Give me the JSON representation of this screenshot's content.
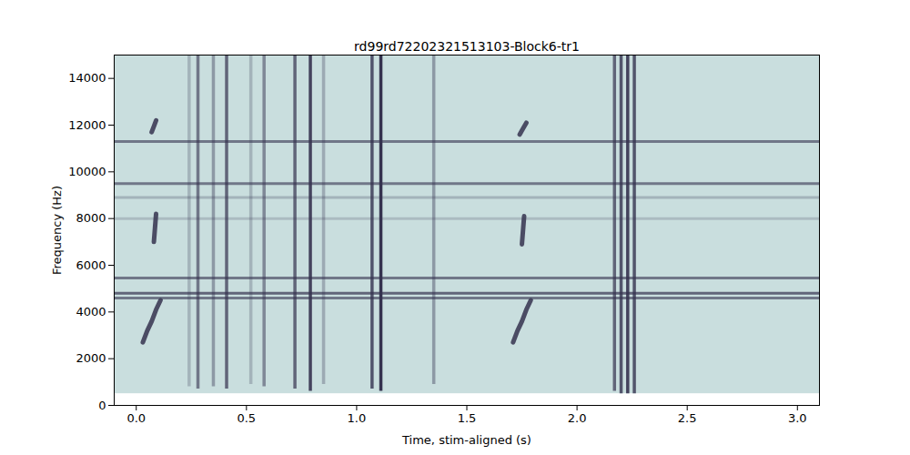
{
  "chart_data": {
    "type": "spectrogram",
    "title": "rd99rd72202321513103-Block6-tr1",
    "x_label": "Time, stim-aligned (s)",
    "y_label": "Frequency (Hz)",
    "xlim": [
      -0.1,
      3.1
    ],
    "ylim": [
      0,
      15000
    ],
    "xticks": [
      {
        "value": 0,
        "label": "0.0"
      },
      {
        "value": 0.5,
        "label": "0.5"
      },
      {
        "value": 1,
        "label": "1.0"
      },
      {
        "value": 1.5,
        "label": "1.5"
      },
      {
        "value": 2,
        "label": "2.0"
      },
      {
        "value": 2.5,
        "label": "2.5"
      },
      {
        "value": 3,
        "label": "3.0"
      }
    ],
    "yticks": [
      0,
      2000,
      4000,
      6000,
      8000,
      10000,
      12000,
      14000
    ],
    "color": "#35324f",
    "noise_band": [
      500,
      15000
    ],
    "broadband_events": [
      {
        "t": 0.24,
        "f_low": 800,
        "f_high": 15000,
        "power": 0.25
      },
      {
        "t": 0.28,
        "f_low": 700,
        "f_high": 15000,
        "power": 0.6
      },
      {
        "t": 0.35,
        "f_low": 800,
        "f_high": 15000,
        "power": 0.4
      },
      {
        "t": 0.41,
        "f_low": 700,
        "f_high": 15000,
        "power": 0.7
      },
      {
        "t": 0.52,
        "f_low": 900,
        "f_high": 15000,
        "power": 0.25
      },
      {
        "t": 0.58,
        "f_low": 800,
        "f_high": 15000,
        "power": 0.5
      },
      {
        "t": 0.72,
        "f_low": 700,
        "f_high": 15000,
        "power": 0.7
      },
      {
        "t": 0.79,
        "f_low": 600,
        "f_high": 15000,
        "power": 0.9
      },
      {
        "t": 0.85,
        "f_low": 900,
        "f_high": 15000,
        "power": 0.3
      },
      {
        "t": 1.07,
        "f_low": 700,
        "f_high": 15000,
        "power": 0.8
      },
      {
        "t": 1.11,
        "f_low": 600,
        "f_high": 15000,
        "power": 1.0
      },
      {
        "t": 1.35,
        "f_low": 900,
        "f_high": 15000,
        "power": 0.4
      },
      {
        "t": 2.17,
        "f_low": 600,
        "f_high": 15000,
        "power": 0.7
      },
      {
        "t": 2.2,
        "f_low": 500,
        "f_high": 15000,
        "power": 0.8
      },
      {
        "t": 2.23,
        "f_low": 500,
        "f_high": 15000,
        "power": 0.9
      },
      {
        "t": 2.26,
        "f_low": 500,
        "f_high": 15000,
        "power": 0.8
      }
    ],
    "tonal_lines": [
      {
        "f": 11300,
        "power": 0.6
      },
      {
        "f": 9500,
        "power": 0.6
      },
      {
        "f": 8900,
        "power": 0.25
      },
      {
        "f": 8000,
        "power": 0.2
      },
      {
        "f": 5450,
        "power": 0.6
      },
      {
        "f": 4800,
        "power": 0.7
      },
      {
        "f": 4600,
        "power": 0.6
      }
    ],
    "calls": [
      {
        "t": [
          0.03,
          0.05,
          0.07,
          0.09,
          0.11
        ],
        "f": [
          2700,
          3200,
          3600,
          4100,
          4500
        ]
      },
      {
        "t": [
          0.07,
          0.08,
          0.09
        ],
        "f": [
          11700,
          11950,
          12200
        ]
      },
      {
        "t": [
          0.08,
          0.085,
          0.09
        ],
        "f": [
          7000,
          7600,
          8200
        ]
      },
      {
        "t": [
          1.71,
          1.73,
          1.75,
          1.77,
          1.79
        ],
        "f": [
          2700,
          3200,
          3600,
          4100,
          4500
        ]
      },
      {
        "t": [
          1.74,
          1.755,
          1.77
        ],
        "f": [
          11600,
          11850,
          12100
        ]
      },
      {
        "t": [
          1.75,
          1.755,
          1.76
        ],
        "f": [
          6900,
          7500,
          8100
        ]
      }
    ]
  }
}
